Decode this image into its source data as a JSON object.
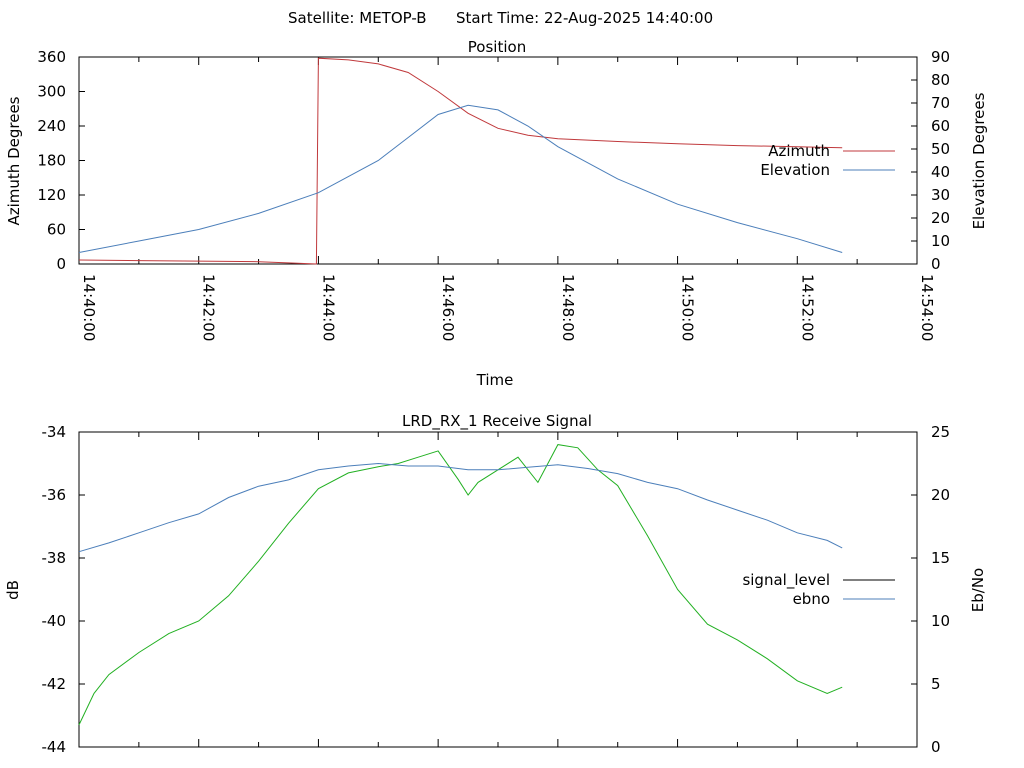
{
  "header": {
    "satellite": "Satellite: METOP-B",
    "start_time": "Start Time: 22-Aug-2025 14:40:00"
  },
  "chart_data": [
    {
      "type": "line",
      "title": "Position",
      "xlabel": "Time",
      "ylabel": "Azimuth Degrees",
      "y2label": "Elevation Degrees",
      "xlim": [
        "14:40:00",
        "14:54:00"
      ],
      "xticks": [
        "14:40:00",
        "14:42:00",
        "14:44:00",
        "14:46:00",
        "14:48:00",
        "14:50:00",
        "14:52:00",
        "14:54:00"
      ],
      "ylim": [
        0,
        360
      ],
      "yticks": [
        "0",
        "60",
        "120",
        "180",
        "240",
        "300",
        "360"
      ],
      "y2lim": [
        0,
        90
      ],
      "y2ticks": [
        "0",
        "10",
        "20",
        "30",
        "40",
        "50",
        "60",
        "70",
        "80",
        "90"
      ],
      "grid": false,
      "legend_position": "right",
      "series": [
        {
          "name": "Azimuth",
          "axis": "y",
          "color": "#c0393c",
          "x": [
            "14:40:00",
            "14:41:00",
            "14:42:00",
            "14:43:00",
            "14:43:30",
            "14:43:58",
            "14:44:00",
            "14:44:30",
            "14:45:00",
            "14:45:30",
            "14:46:00",
            "14:46:30",
            "14:47:00",
            "14:47:30",
            "14:48:00",
            "14:49:00",
            "14:50:00",
            "14:51:00",
            "14:52:00",
            "14:52:45"
          ],
          "values": [
            7,
            6,
            5,
            4,
            2,
            0,
            358,
            355,
            348,
            333,
            300,
            262,
            236,
            224,
            218,
            213,
            209,
            206,
            204,
            202
          ]
        },
        {
          "name": "Elevation",
          "axis": "y2",
          "color": "#4c7fba",
          "x": [
            "14:40:00",
            "14:41:00",
            "14:42:00",
            "14:43:00",
            "14:44:00",
            "14:45:00",
            "14:45:30",
            "14:46:00",
            "14:46:30",
            "14:47:00",
            "14:47:30",
            "14:48:00",
            "14:49:00",
            "14:50:00",
            "14:51:00",
            "14:52:00",
            "14:52:45"
          ],
          "values": [
            5,
            10,
            15,
            22,
            31,
            45,
            55,
            65,
            69,
            67,
            60,
            51,
            37,
            26,
            18,
            11,
            5
          ]
        }
      ]
    },
    {
      "type": "line",
      "title": "LRD_RX_1 Receive Signal",
      "xlabel": "",
      "ylabel": "dB",
      "y2label": "Eb/No",
      "xlim": [
        "14:40:00",
        "14:54:00"
      ],
      "ylim": [
        -44,
        -34
      ],
      "yticks": [
        "-44",
        "-42",
        "-40",
        "-38",
        "-36",
        "-34"
      ],
      "y2lim": [
        0,
        25
      ],
      "y2ticks": [
        "0",
        "5",
        "10",
        "15",
        "20",
        "25"
      ],
      "grid": false,
      "legend_position": "right",
      "legend": [
        {
          "name": "signal_level",
          "color": "#000000"
        },
        {
          "name": "ebno",
          "color": "#4c7fba"
        }
      ],
      "series": [
        {
          "name": "signal_level",
          "axis": "y",
          "color": "#22b022",
          "x": [
            "14:40:00",
            "14:40:15",
            "14:40:30",
            "14:41:00",
            "14:41:30",
            "14:42:00",
            "14:42:30",
            "14:43:00",
            "14:43:30",
            "14:44:00",
            "14:44:30",
            "14:45:00",
            "14:45:20",
            "14:45:40",
            "14:46:00",
            "14:46:20",
            "14:46:30",
            "14:46:40",
            "14:47:00",
            "14:47:20",
            "14:47:40",
            "14:48:00",
            "14:48:20",
            "14:48:40",
            "14:49:00",
            "14:49:30",
            "14:50:00",
            "14:50:30",
            "14:51:00",
            "14:51:30",
            "14:52:00",
            "14:52:30",
            "14:52:45"
          ],
          "values": [
            -43.3,
            -42.3,
            -41.7,
            -41.0,
            -40.4,
            -40.0,
            -39.2,
            -38.1,
            -36.9,
            -35.8,
            -35.3,
            -35.1,
            -35.0,
            -34.8,
            -34.6,
            -35.5,
            -36.0,
            -35.6,
            -35.2,
            -34.8,
            -35.6,
            -34.4,
            -34.5,
            -35.2,
            -35.7,
            -37.3,
            -39.0,
            -40.1,
            -40.6,
            -41.2,
            -41.9,
            -42.3,
            -42.1
          ]
        },
        {
          "name": "ebno",
          "axis": "y2",
          "color": "#4c7fba",
          "x": [
            "14:40:00",
            "14:40:30",
            "14:41:00",
            "14:41:30",
            "14:42:00",
            "14:42:30",
            "14:43:00",
            "14:43:30",
            "14:44:00",
            "14:44:30",
            "14:45:00",
            "14:45:30",
            "14:46:00",
            "14:46:30",
            "14:47:00",
            "14:47:30",
            "14:48:00",
            "14:48:30",
            "14:49:00",
            "14:49:30",
            "14:50:00",
            "14:50:30",
            "14:51:00",
            "14:51:30",
            "14:52:00",
            "14:52:30",
            "14:52:45"
          ],
          "values": [
            15.5,
            16.2,
            17.0,
            17.8,
            18.5,
            19.8,
            20.7,
            21.2,
            22.0,
            22.3,
            22.5,
            22.3,
            22.3,
            22.0,
            22.0,
            22.2,
            22.4,
            22.1,
            21.7,
            21.0,
            20.5,
            19.6,
            18.8,
            18.0,
            17.0,
            16.4,
            15.8
          ]
        }
      ]
    }
  ]
}
